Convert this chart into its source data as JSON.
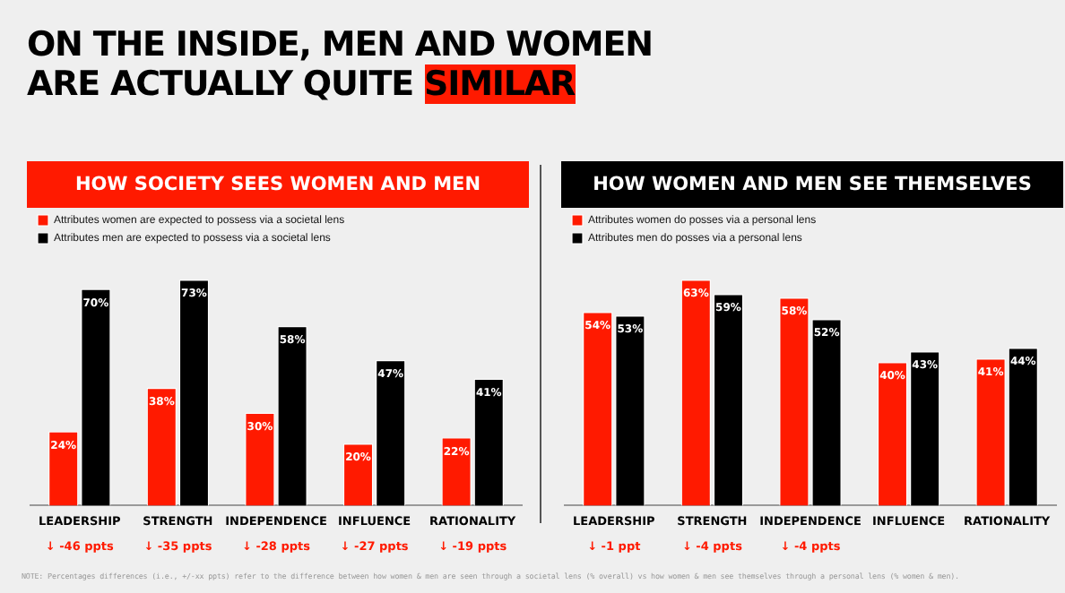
{
  "chart_data": [
    {
      "type": "bar",
      "title": "HOW SOCIETY SEES WOMEN AND MEN",
      "categories": [
        "LEADERSHIP",
        "STRENGTH",
        "INDEPENDENCE",
        "INFLUENCE",
        "RATIONALITY"
      ],
      "series": [
        {
          "name": "Attributes women are expected to possess via a societal lens",
          "color": "#ff1a00",
          "values": [
            24,
            38,
            30,
            20,
            22
          ],
          "value_labels": [
            "24%",
            "38%",
            "30%",
            "20%",
            "22%"
          ]
        },
        {
          "name": "Attributes men are expected to possess via a societal lens",
          "color": "#000000",
          "values": [
            70,
            73,
            58,
            47,
            41
          ],
          "value_labels": [
            "70%",
            "73%",
            "58%",
            "47%",
            "41%"
          ]
        }
      ],
      "legend": "top left",
      "grid": false,
      "tick_labels": "x",
      "annotations": [
        "ON THE INSIDE, MEN AND WOMEN ARE ACTUALLY QUITE SIMILAR",
        "NOTE: Percentages differences (i.e., +/-xx ppts) refer to the difference between how women & men are seen through a societal lens (% overall) vs how women & men see themselves through a personal lens (% women & men).",
        "↓ -46 ppts",
        "↓ -35 ppts",
        "↓ -28 ppts",
        "↓ -27 ppts",
        "↓ -19 ppts"
      ]
    },
    {
      "type": "bar",
      "title": "HOW WOMEN AND MEN SEE THEMSELVES",
      "categories": [
        "LEADERSHIP",
        "STRENGTH",
        "INDEPENDENCE",
        "INFLUENCE",
        "RATIONALITY"
      ],
      "series": [
        {
          "name": "Attributes women do posses via a personal lens",
          "color": "#ff1a00",
          "values": [
            54,
            63,
            58,
            40,
            41
          ],
          "value_labels": [
            "54%",
            "63%",
            "58%",
            "40%",
            "41%"
          ]
        },
        {
          "name": "Attributes men do posses via a personal lens",
          "color": "#000000",
          "values": [
            53,
            59,
            52,
            43,
            44
          ],
          "value_labels": [
            "53%",
            "59%",
            "52%",
            "43%",
            "44%"
          ]
        }
      ],
      "legend": "top left",
      "grid": false,
      "tick_labels": "x",
      "annotations": [
        "↓ -1 ppt",
        "↓ -4 ppts",
        "↓ -4 ppts"
      ]
    }
  ]
}
